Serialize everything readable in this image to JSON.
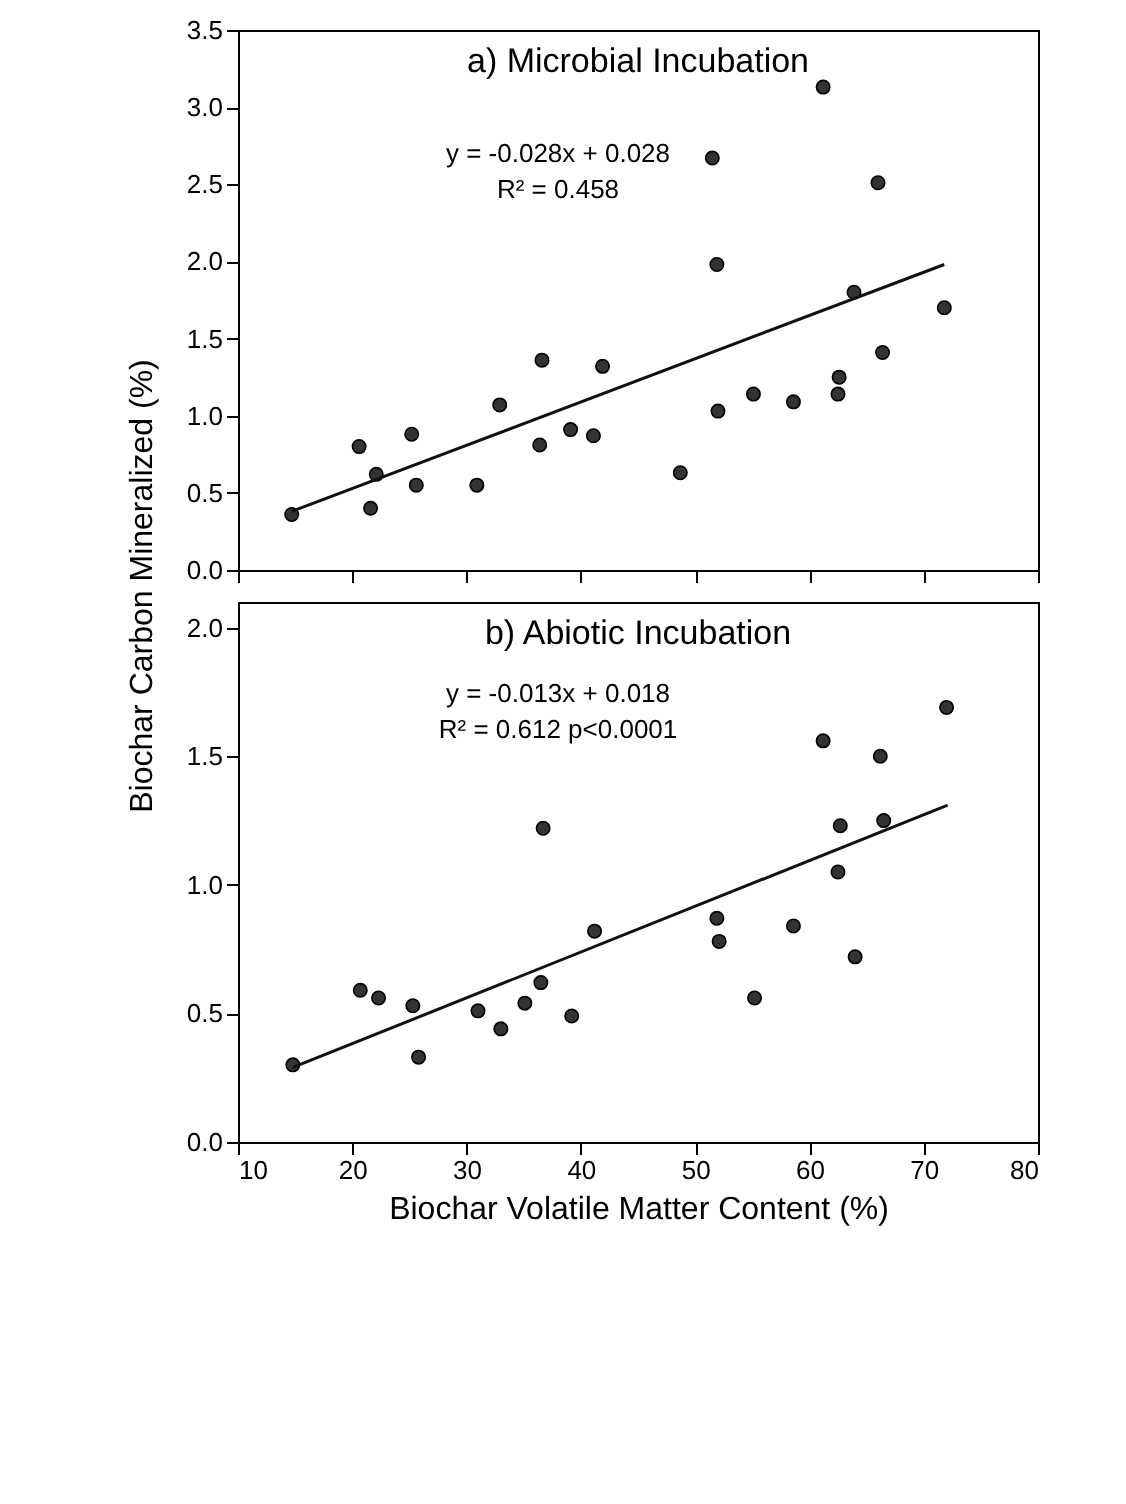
{
  "chart_data": [
    {
      "type": "scatter",
      "ylabel": "Biochar Carbon Mineralized (%)",
      "annotations": [
        "a) Microbial Incubation",
        "y = -0.028x + 0.028",
        "R² = 0.458"
      ],
      "xlim": [
        10,
        80
      ],
      "xticks": [
        {
          "value": 10,
          "label": null
        },
        {
          "value": 20,
          "label": null
        },
        {
          "value": 30,
          "label": null
        },
        {
          "value": 40,
          "label": null
        },
        {
          "value": 50,
          "label": null
        },
        {
          "value": 60,
          "label": null
        },
        {
          "value": 70,
          "label": null
        },
        {
          "value": 80,
          "label": null
        }
      ],
      "ylim": [
        0,
        3.5
      ],
      "yticks": [
        {
          "value": 0,
          "label": "0.0"
        },
        0.5,
        {
          "value": 1,
          "label": "1.0"
        },
        1.5,
        {
          "value": 2,
          "label": "2.0"
        },
        2.5,
        {
          "value": 3,
          "label": "3.0"
        },
        3.5
      ],
      "tick_labels": "y",
      "grid": false,
      "series": [
        {
          "marker": "circle",
          "color": "#333333",
          "x": [
            14.7,
            20.6,
            21.6,
            22.1,
            25.2,
            25.6,
            30.9,
            32.9,
            36.4,
            36.6,
            39.1,
            41.1,
            41.9,
            48.7,
            51.5,
            51.9,
            52.0,
            55.1,
            58.6,
            61.2,
            62.5,
            62.6,
            63.9,
            66.0,
            66.4,
            71.8
          ],
          "values": [
            0.36,
            0.8,
            0.4,
            0.62,
            0.88,
            0.55,
            0.55,
            1.07,
            0.81,
            1.36,
            0.91,
            0.87,
            1.32,
            0.63,
            2.67,
            1.98,
            1.03,
            1.14,
            1.09,
            3.13,
            1.14,
            1.25,
            1.8,
            2.51,
            1.41,
            1.7
          ]
        },
        {
          "type": "line",
          "color": "#111111",
          "line_style": "solid",
          "x": [
            14.7,
            71.8
          ],
          "values": [
            0.38,
            1.98
          ]
        }
      ]
    },
    {
      "type": "scatter",
      "xlabel": "Biochar Volatile Matter Content (%)",
      "annotations": [
        "b) Abiotic Incubation",
        "y = -0.013x + 0.018",
        "R² = 0.612    p<0.0001"
      ],
      "xlim": [
        10,
        80
      ],
      "xticks": [
        10,
        20,
        30,
        40,
        50,
        60,
        70,
        80
      ],
      "ylim": [
        0,
        2.1
      ],
      "yticks": [
        {
          "value": 0,
          "label": "0.0"
        },
        0.5,
        {
          "value": 1,
          "label": "1.0"
        },
        1.5,
        {
          "value": 2,
          "label": "2.0"
        }
      ],
      "grid": false,
      "series": [
        {
          "marker": "circle",
          "color": "#333333",
          "x": [
            14.8,
            20.7,
            22.3,
            25.3,
            25.8,
            31.0,
            33.0,
            35.1,
            36.5,
            36.7,
            39.2,
            41.2,
            51.9,
            52.1,
            55.2,
            58.6,
            61.2,
            62.5,
            62.7,
            64.0,
            66.2,
            66.5,
            72.0
          ],
          "values": [
            0.3,
            0.59,
            0.56,
            0.53,
            0.33,
            0.51,
            0.44,
            0.54,
            0.62,
            1.22,
            0.49,
            0.82,
            0.87,
            0.78,
            0.56,
            0.84,
            1.56,
            1.05,
            1.23,
            0.72,
            1.5,
            1.25,
            1.69
          ]
        },
        {
          "type": "line",
          "color": "#111111",
          "line_style": "solid",
          "x": [
            14.8,
            72.1
          ],
          "values": [
            0.29,
            1.31
          ]
        }
      ]
    }
  ]
}
